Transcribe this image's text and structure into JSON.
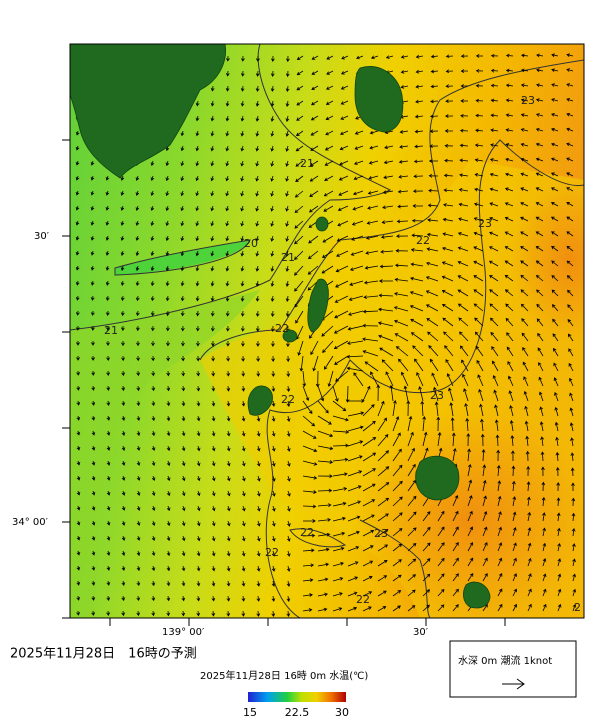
{
  "header": {
    "title": "2025年11月28日　16時の予測"
  },
  "map": {
    "lat_labels": [
      "30′",
      "34° 00′"
    ],
    "lon_labels": [
      "139° 00′",
      "30′"
    ],
    "contour_labels": [
      "21",
      "20",
      "21",
      "21",
      "22",
      "22",
      "22",
      "23",
      "23",
      "23",
      "23",
      "22",
      "22",
      "22",
      "2"
    ]
  },
  "colorbar": {
    "title": "2025年11月28日 16時 0m 水温(℃)",
    "labels": [
      "15",
      "22.5",
      "30"
    ]
  },
  "legend": {
    "text": "水深 0m 潮流 1knot"
  }
}
